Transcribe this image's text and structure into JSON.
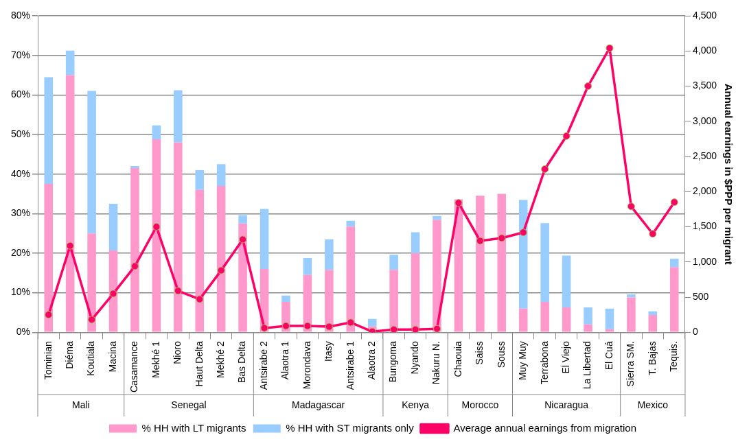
{
  "chart_data": {
    "type": "bar",
    "stacked": true,
    "y2label": "Annual earnings in $PPP per migrant",
    "categories": [
      "Tominian",
      "Diéma",
      "Koutiala",
      "Macina",
      "Casamance",
      "Mekhé 1",
      "Nioro",
      "Haut Delta",
      "Mekhé 2",
      "Bas Delta",
      "Antsirabe 2",
      "Alaotra 1",
      "Morondava",
      "Itasy",
      "Antsirabe 1",
      "Alaotra 2",
      "Bungoma",
      "Nyando",
      "Nakuru N.",
      "Chaouia",
      "Saiss",
      "Souss",
      "Muy Muy",
      "Terrabona",
      "El Viejo",
      "La Libertad",
      "El Cuá",
      "Sierra SM.",
      "T. Bajas",
      "Tequis."
    ],
    "series": [
      {
        "name": "% HH with LT migrants",
        "color": "#ff99cc",
        "values": [
          37.5,
          65,
          25,
          20.7,
          41.5,
          48.8,
          48,
          36,
          37,
          27.5,
          16,
          7.7,
          14.5,
          15.8,
          26.7,
          1.5,
          15.8,
          20,
          28.4,
          33.6,
          34.5,
          35,
          6,
          7.7,
          6.3,
          2,
          0.8,
          8.8,
          4.4,
          16.5
        ]
      },
      {
        "name": "% HH with ST migrants only",
        "color": "#99ccff",
        "values": [
          27,
          6.2,
          36,
          11.8,
          0.5,
          3.5,
          13.2,
          5,
          5.5,
          2.1,
          15.2,
          1.6,
          4.3,
          7.7,
          1.5,
          1.9,
          3.8,
          5.3,
          1,
          0,
          0,
          0,
          27.5,
          19.9,
          13.1,
          4.3,
          5.2,
          0.8,
          0.9,
          2.1
        ]
      },
      {
        "name": "Average annual earnings from migration",
        "type": "line",
        "axis": "y2",
        "marker": "circle",
        "color": "#ff0066",
        "values": [
          250,
          1230,
          180,
          550,
          940,
          1500,
          590,
          470,
          880,
          1320,
          60,
          90,
          90,
          80,
          140,
          10,
          40,
          40,
          50,
          1840,
          1300,
          1340,
          1420,
          2320,
          2790,
          3500,
          4040,
          1790,
          1400,
          1850
        ]
      }
    ],
    "ylim": [
      0,
      80
    ],
    "yticks": [
      {
        "value": 0,
        "label": "0%"
      },
      {
        "value": 10,
        "label": "10%"
      },
      {
        "value": 20,
        "label": "20%"
      },
      {
        "value": 30,
        "label": "30%"
      },
      {
        "value": 40,
        "label": "40%"
      },
      {
        "value": 50,
        "label": "50%"
      },
      {
        "value": 60,
        "label": "60%"
      },
      {
        "value": 70,
        "label": "70%"
      },
      {
        "value": 80,
        "label": "80%"
      }
    ],
    "y2lim": [
      0,
      4500
    ],
    "y2ticks": [
      {
        "value": 0,
        "label": "0"
      },
      {
        "value": 500,
        "label": "500"
      },
      {
        "value": 1000,
        "label": "1,000"
      },
      {
        "value": 1500,
        "label": "1,500"
      },
      {
        "value": 2000,
        "label": "2,000"
      },
      {
        "value": 2500,
        "label": "2,500"
      },
      {
        "value": 3000,
        "label": "3,000"
      },
      {
        "value": 3500,
        "label": "3,500"
      },
      {
        "value": 4000,
        "label": "4,000"
      },
      {
        "value": 4500,
        "label": "4,500"
      }
    ],
    "grid": "y",
    "legend": "bottom",
    "annotations": [
      "Mali",
      "Senegal",
      "Madagascar",
      "Kenya",
      "Morocco",
      "Nicaragua",
      "Mexico"
    ]
  }
}
